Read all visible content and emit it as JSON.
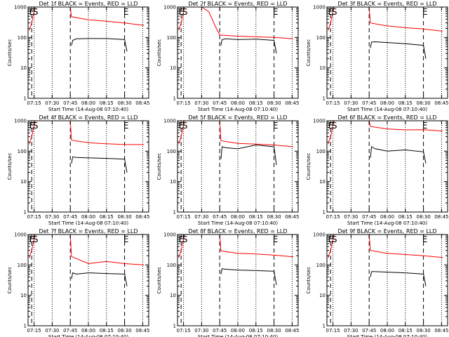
{
  "chart_data": [
    {
      "type": "line",
      "title": "Det 1f BLACK = Events, RED = LLD",
      "xlabel": "Start Time (14-Aug-08 07:10:40)",
      "ylabel": "Counts/sec",
      "yscale": "log",
      "ylim": [
        1,
        1000
      ],
      "xlim": [
        "07:10",
        "08:50"
      ],
      "xticks": [
        "07:15",
        "07:30",
        "07:45",
        "08:00",
        "08:15",
        "08:30",
        "08:45"
      ],
      "yticks": [
        "1",
        "10",
        "100",
        "1000"
      ],
      "markers": [
        "E",
        "S",
        "E"
      ],
      "series": [
        {
          "color": "#ff0000",
          "x": [
            "07:11",
            "07:13",
            "07:15",
            "07:16",
            "07:45",
            "07:46",
            "08:00",
            "08:15",
            "08:30",
            "08:46"
          ],
          "y": [
            170,
            300,
            700,
            1000,
            1000,
            480,
            380,
            340,
            300,
            250
          ]
        },
        {
          "color": "#000000",
          "x": [
            "07:46",
            "07:47",
            "07:50",
            "08:00",
            "08:15",
            "08:30",
            "08:32"
          ],
          "y": [
            55,
            80,
            90,
            92,
            92,
            85,
            35
          ]
        }
      ]
    },
    {
      "type": "line",
      "title": "Det 2f BLACK = Events, RED = LLD",
      "xlabel": "Start Time (14-Aug-08 07:10:40)",
      "ylabel": "Counts/sec",
      "yscale": "log",
      "ylim": [
        1,
        1000
      ],
      "xlim": [
        "07:10",
        "08:50"
      ],
      "xticks": [
        "07:15",
        "07:30",
        "07:45",
        "08:00",
        "08:15",
        "08:30",
        "08:45"
      ],
      "yticks": [
        "1",
        "10",
        "100",
        "1000"
      ],
      "markers": [
        "E",
        "S",
        "E"
      ],
      "series": [
        {
          "color": "#ff0000",
          "x": [
            "07:11",
            "07:13",
            "07:15",
            "07:16",
            "07:30",
            "07:36",
            "07:41",
            "07:45",
            "08:00",
            "08:15",
            "08:30",
            "08:46"
          ],
          "y": [
            170,
            300,
            700,
            1000,
            1000,
            700,
            250,
            120,
            110,
            105,
            100,
            90
          ]
        },
        {
          "color": "#000000",
          "x": [
            "07:46",
            "07:47",
            "07:50",
            "08:00",
            "08:15",
            "08:30",
            "08:32"
          ],
          "y": [
            55,
            85,
            90,
            85,
            88,
            80,
            30
          ]
        }
      ]
    },
    {
      "type": "line",
      "title": "Det 3f BLACK = Events, RED = LLD",
      "xlabel": "Start Time (14-Aug-08 07:10:40)",
      "ylabel": "Counts/sec",
      "yscale": "log",
      "ylim": [
        1,
        1000
      ],
      "xlim": [
        "07:10",
        "08:50"
      ],
      "xticks": [
        "07:15",
        "07:30",
        "07:45",
        "08:00",
        "08:15",
        "08:30",
        "08:45"
      ],
      "yticks": [
        "1",
        "10",
        "100",
        "1000"
      ],
      "markers": [
        "E",
        "S",
        "E"
      ],
      "series": [
        {
          "color": "#ff0000",
          "x": [
            "07:11",
            "07:13",
            "07:15",
            "07:16",
            "07:45",
            "07:46",
            "08:00",
            "08:15",
            "08:30",
            "08:46"
          ],
          "y": [
            170,
            300,
            700,
            1000,
            1000,
            300,
            240,
            210,
            190,
            160
          ]
        },
        {
          "color": "#000000",
          "x": [
            "07:46",
            "07:47",
            "07:50",
            "08:00",
            "08:15",
            "08:30",
            "08:32"
          ],
          "y": [
            45,
            70,
            72,
            68,
            62,
            55,
            20
          ]
        }
      ]
    },
    {
      "type": "line",
      "title": "Det 4f BLACK = Events, RED = LLD",
      "xlabel": "Start Time (14-Aug-08 07:10:40)",
      "ylabel": "Counts/sec",
      "yscale": "log",
      "ylim": [
        1,
        1000
      ],
      "xlim": [
        "07:10",
        "08:50"
      ],
      "xticks": [
        "07:15",
        "07:30",
        "07:45",
        "08:00",
        "08:15",
        "08:30",
        "08:45"
      ],
      "yticks": [
        "1",
        "10",
        "100",
        "1000"
      ],
      "markers": [
        "E",
        "S",
        "E"
      ],
      "series": [
        {
          "color": "#ff0000",
          "x": [
            "07:11",
            "07:13",
            "07:15",
            "07:16",
            "07:45",
            "07:46",
            "08:00",
            "08:15",
            "08:30",
            "08:46"
          ],
          "y": [
            170,
            300,
            700,
            1000,
            1000,
            230,
            190,
            175,
            165,
            165
          ]
        },
        {
          "color": "#000000",
          "x": [
            "07:46",
            "07:47",
            "07:50",
            "08:00",
            "08:15",
            "08:30",
            "08:32"
          ],
          "y": [
            40,
            65,
            62,
            60,
            58,
            55,
            20
          ]
        }
      ]
    },
    {
      "type": "line",
      "title": "Det 5f BLACK = Events, RED = LLD",
      "xlabel": "Start Time (14-Aug-08 07:10:40)",
      "ylabel": "Counts/sec",
      "yscale": "log",
      "ylim": [
        1,
        1000
      ],
      "xlim": [
        "07:10",
        "08:50"
      ],
      "xticks": [
        "07:15",
        "07:30",
        "07:45",
        "08:00",
        "08:15",
        "08:30",
        "08:45"
      ],
      "yticks": [
        "1",
        "10",
        "100",
        "1000"
      ],
      "markers": [
        "E",
        "S",
        "E"
      ],
      "series": [
        {
          "color": "#ff0000",
          "x": [
            "07:11",
            "07:13",
            "07:15",
            "07:16",
            "07:45",
            "07:46",
            "08:00",
            "08:15",
            "08:30",
            "08:46"
          ],
          "y": [
            170,
            300,
            700,
            1000,
            1000,
            220,
            180,
            170,
            160,
            140
          ]
        },
        {
          "color": "#000000",
          "x": [
            "07:46",
            "07:47",
            "07:50",
            "08:00",
            "08:15",
            "08:30",
            "08:32"
          ],
          "y": [
            55,
            140,
            130,
            120,
            160,
            140,
            35
          ]
        }
      ]
    },
    {
      "type": "line",
      "title": "Det 6f BLACK = Events, RED = LLD",
      "xlabel": "Start Time (14-Aug-08 07:10:40)",
      "ylabel": "Counts/sec",
      "yscale": "log",
      "ylim": [
        1,
        1000
      ],
      "xlim": [
        "07:10",
        "08:50"
      ],
      "xticks": [
        "07:15",
        "07:30",
        "07:45",
        "08:00",
        "08:15",
        "08:30",
        "08:45"
      ],
      "yticks": [
        "1",
        "10",
        "100",
        "1000"
      ],
      "markers": [
        "E",
        "S",
        "E"
      ],
      "series": [
        {
          "color": "#ff0000",
          "x": [
            "07:11",
            "07:13",
            "07:15",
            "07:16",
            "07:45",
            "07:46",
            "08:00",
            "08:15",
            "08:30",
            "08:46"
          ],
          "y": [
            170,
            300,
            700,
            1000,
            1000,
            650,
            540,
            500,
            510,
            460
          ]
        },
        {
          "color": "#000000",
          "x": [
            "07:46",
            "07:47",
            "07:50",
            "08:00",
            "08:15",
            "08:30",
            "08:32"
          ],
          "y": [
            60,
            140,
            120,
            100,
            110,
            95,
            40
          ]
        }
      ]
    },
    {
      "type": "line",
      "title": "Det 7f BLACK = Events, RED = LLD",
      "xlabel": "Start Time (14-Aug-08 07:10:40)",
      "ylabel": "Counts/sec",
      "yscale": "log",
      "ylim": [
        1,
        1000
      ],
      "xlim": [
        "07:10",
        "08:50"
      ],
      "xticks": [
        "07:15",
        "07:30",
        "07:45",
        "08:00",
        "08:15",
        "08:30",
        "08:45"
      ],
      "yticks": [
        "1",
        "10",
        "100",
        "1000"
      ],
      "markers": [
        "E",
        "S",
        "E"
      ],
      "series": [
        {
          "color": "#ff0000",
          "x": [
            "07:11",
            "07:13",
            "07:15",
            "07:16",
            "07:45",
            "07:46",
            "08:00",
            "08:15",
            "08:30",
            "08:46"
          ],
          "y": [
            170,
            300,
            700,
            1000,
            1000,
            190,
            110,
            130,
            110,
            100
          ]
        },
        {
          "color": "#000000",
          "x": [
            "07:46",
            "07:47",
            "07:50",
            "08:00",
            "08:15",
            "08:30",
            "08:32"
          ],
          "y": [
            35,
            55,
            50,
            55,
            52,
            50,
            20
          ]
        }
      ]
    },
    {
      "type": "line",
      "title": "Det 8f BLACK = Events, RED = LLD",
      "xlabel": "Start Time (14-Aug-08 07:10:40)",
      "ylabel": "Counts/sec",
      "yscale": "log",
      "ylim": [
        1,
        1000
      ],
      "xlim": [
        "07:10",
        "08:50"
      ],
      "xticks": [
        "07:15",
        "07:30",
        "07:45",
        "08:00",
        "08:15",
        "08:30",
        "08:45"
      ],
      "yticks": [
        "1",
        "10",
        "100",
        "1000"
      ],
      "markers": [
        "E",
        "S",
        "E"
      ],
      "series": [
        {
          "color": "#ff0000",
          "x": [
            "07:11",
            "07:13",
            "07:15",
            "07:16",
            "07:45",
            "07:46",
            "08:00",
            "08:15",
            "08:30",
            "08:46"
          ],
          "y": [
            170,
            300,
            700,
            1000,
            1000,
            290,
            240,
            230,
            210,
            185
          ]
        },
        {
          "color": "#000000",
          "x": [
            "07:46",
            "07:47",
            "07:50",
            "08:00",
            "08:15",
            "08:30",
            "08:32"
          ],
          "y": [
            50,
            75,
            72,
            68,
            65,
            62,
            22
          ]
        }
      ]
    },
    {
      "type": "line",
      "title": "Det 9f BLACK = Events, RED = LLD",
      "xlabel": "Start Time (14-Aug-08 07:10:40)",
      "ylabel": "Counts/sec",
      "yscale": "log",
      "ylim": [
        1,
        1000
      ],
      "xlim": [
        "07:10",
        "08:50"
      ],
      "xticks": [
        "07:15",
        "07:30",
        "07:45",
        "08:00",
        "08:15",
        "08:30",
        "08:45"
      ],
      "yticks": [
        "1",
        "10",
        "100",
        "1000"
      ],
      "markers": [
        "E",
        "S",
        "E"
      ],
      "series": [
        {
          "color": "#ff0000",
          "x": [
            "07:11",
            "07:13",
            "07:15",
            "07:16",
            "07:45",
            "07:46",
            "08:00",
            "08:15",
            "08:30",
            "08:46"
          ],
          "y": [
            170,
            300,
            700,
            1000,
            1000,
            300,
            240,
            220,
            200,
            175
          ]
        },
        {
          "color": "#000000",
          "x": [
            "07:46",
            "07:47",
            "07:50",
            "08:00",
            "08:15",
            "08:30",
            "08:32"
          ],
          "y": [
            40,
            60,
            60,
            58,
            55,
            50,
            20
          ]
        }
      ]
    }
  ],
  "vertical_lines": {
    "dashed": [
      "07:13",
      "07:45",
      "08:30"
    ],
    "dotted": [
      "07:15",
      "07:30",
      "08:00",
      "08:15",
      "08:45"
    ]
  }
}
